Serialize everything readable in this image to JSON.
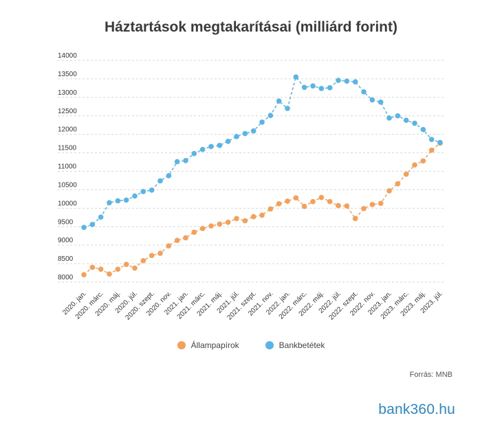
{
  "chart_data": {
    "type": "line",
    "title": "Háztartások megtakarításai (milliárd forint)",
    "xlabel": "",
    "ylabel": "",
    "ylim": [
      8000,
      14000
    ],
    "yticks": [
      8000,
      8500,
      9000,
      9500,
      10000,
      10500,
      11000,
      11500,
      12000,
      12500,
      13000,
      13500,
      14000
    ],
    "grid": "horizontal dashed",
    "legend_position": "bottom",
    "x": [
      "2020. jan.",
      "2020. febr.",
      "2020. márc.",
      "2020. ápr.",
      "2020. máj.",
      "2020. jún.",
      "2020. júl.",
      "2020. aug.",
      "2020. szept.",
      "2020. okt.",
      "2020. nov.",
      "2020. dec.",
      "2021. jan.",
      "2021. febr.",
      "2021. márc.",
      "2021. ápr.",
      "2021. máj.",
      "2021. jún.",
      "2021. júl.",
      "2021. aug.",
      "2021. szept.",
      "2021. okt.",
      "2021. nov.",
      "2021. dec.",
      "2022. jan.",
      "2022. febr.",
      "2022. márc.",
      "2022. ápr.",
      "2022. máj.",
      "2022. jún.",
      "2022. júl.",
      "2022. aug.",
      "2022. szept.",
      "2022. okt.",
      "2022. nov.",
      "2022. dec.",
      "2023. jan.",
      "2023. febr.",
      "2023. márc.",
      "2023. ápr.",
      "2023. máj.",
      "2023. jún.",
      "2023. júl."
    ],
    "tick_labels": [
      "2020. jan.",
      "2020. márc.",
      "2020. máj.",
      "2020. júl.",
      "2020. szept.",
      "2020. nov.",
      "2021. jan.",
      "2021. márc.",
      "2021. máj.",
      "2021. júl.",
      "2021. szept.",
      "2021. nov.",
      "2022. jan.",
      "2022. márc.",
      "2022. máj.",
      "2022. júl.",
      "2022. szept.",
      "2022. nov.",
      "2023. jan.",
      "2023. márc.",
      "2023. máj.",
      "2023. júl."
    ],
    "series": [
      {
        "name": "Állampapírok",
        "color": "#f5a05a",
        "values": [
          8200,
          8400,
          8350,
          8220,
          8350,
          8480,
          8380,
          8580,
          8720,
          8780,
          8980,
          9130,
          9200,
          9350,
          9450,
          9520,
          9570,
          9620,
          9720,
          9660,
          9770,
          9810,
          9980,
          10120,
          10190,
          10280,
          10050,
          10180,
          10290,
          10180,
          10070,
          10060,
          9720,
          9990,
          10100,
          10130,
          10470,
          10660,
          10920,
          11170,
          11280,
          11570,
          11760
        ]
      },
      {
        "name": "Bankbetétek",
        "color": "#5ab4e5",
        "values": [
          9480,
          9560,
          9760,
          10150,
          10200,
          10220,
          10330,
          10450,
          10490,
          10740,
          10880,
          11260,
          11290,
          11480,
          11590,
          11670,
          11700,
          11810,
          11940,
          12020,
          12090,
          12330,
          12510,
          12900,
          12700,
          13550,
          13270,
          13310,
          13240,
          13260,
          13460,
          13440,
          13420,
          13150,
          12930,
          12870,
          12440,
          12500,
          12380,
          12300,
          12130,
          11860,
          11780
        ]
      }
    ]
  },
  "legend": {
    "items": [
      {
        "label": "Állampapírok",
        "color": "#f5a05a"
      },
      {
        "label": "Bankbetétek",
        "color": "#5ab4e5"
      }
    ]
  },
  "source": "Forrás: MNB",
  "logo": "bank360.hu"
}
